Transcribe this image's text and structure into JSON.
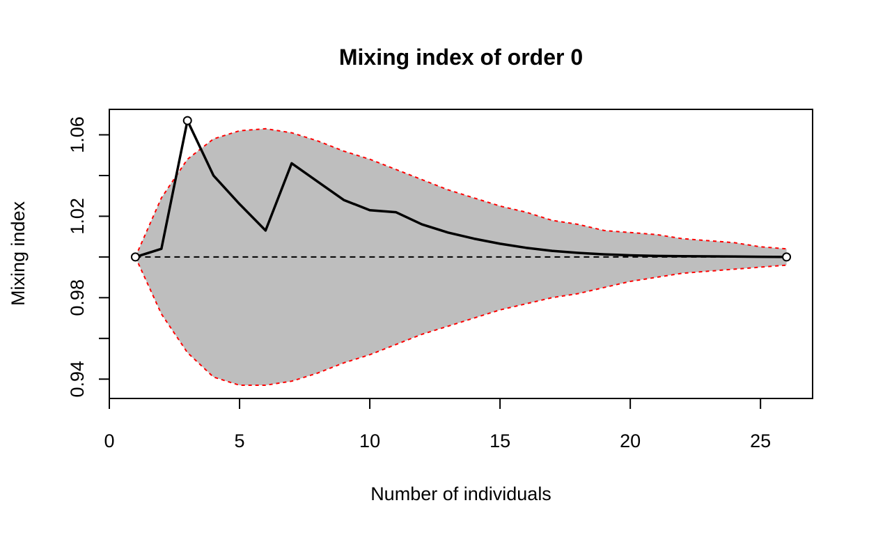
{
  "chart_data": {
    "type": "line",
    "title": "Mixing index of order 0",
    "xlabel": "Number of individuals",
    "ylabel": "Mixing index",
    "xlim": [
      0,
      27
    ],
    "ylim": [
      0.9305,
      1.0725
    ],
    "x_ticks": [
      0,
      5,
      10,
      15,
      20,
      25
    ],
    "x_tick_labels": [
      "0",
      "5",
      "10",
      "15",
      "20",
      "25"
    ],
    "y_ticks": [
      0.94,
      0.96,
      0.98,
      1.0,
      1.02,
      1.04,
      1.06
    ],
    "y_tick_labels": [
      "0.94",
      "",
      "0.98",
      "",
      "1.02",
      "",
      "1.06"
    ],
    "grid": false,
    "legend": "none",
    "colors": {
      "envelope_fill": "#bebebe",
      "envelope_border": "#ff0000",
      "observed_line": "#000000",
      "reference_line": "#000000"
    },
    "reference": {
      "y": 1.0,
      "style": "dashed"
    },
    "series": [
      {
        "role": "observed",
        "style": "solid",
        "x": [
          1,
          2,
          3,
          4,
          5,
          6,
          7,
          8,
          9,
          10,
          11,
          12,
          13,
          14,
          15,
          16,
          17,
          18,
          19,
          20,
          21,
          22,
          23,
          24,
          25,
          26
        ],
        "y": [
          1.0,
          1.004,
          1.067,
          1.04,
          1.026,
          1.013,
          1.046,
          1.037,
          1.028,
          1.023,
          1.022,
          1.016,
          1.012,
          1.009,
          1.0065,
          1.0045,
          1.003,
          1.002,
          1.0013,
          1.0008,
          1.0005,
          1.0004,
          1.0003,
          1.0002,
          1.0001,
          1.0
        ],
        "endpoint_markers": true
      },
      {
        "role": "envelope-upper",
        "style": "dashed",
        "x": [
          1,
          2,
          3,
          4,
          5,
          6,
          7,
          8,
          9,
          10,
          11,
          12,
          13,
          14,
          15,
          16,
          17,
          18,
          19,
          20,
          21,
          22,
          23,
          24,
          25,
          26
        ],
        "y": [
          1.0,
          1.029,
          1.048,
          1.058,
          1.062,
          1.063,
          1.061,
          1.057,
          1.052,
          1.048,
          1.043,
          1.038,
          1.033,
          1.029,
          1.025,
          1.022,
          1.018,
          1.016,
          1.013,
          1.012,
          1.011,
          1.009,
          1.008,
          1.007,
          1.005,
          1.004
        ]
      },
      {
        "role": "envelope-lower",
        "style": "dashed",
        "x": [
          1,
          2,
          3,
          4,
          5,
          6,
          7,
          8,
          9,
          10,
          11,
          12,
          13,
          14,
          15,
          16,
          17,
          18,
          19,
          20,
          21,
          22,
          23,
          24,
          25,
          26
        ],
        "y": [
          1.0,
          0.972,
          0.953,
          0.941,
          0.937,
          0.937,
          0.939,
          0.943,
          0.948,
          0.952,
          0.957,
          0.962,
          0.966,
          0.97,
          0.974,
          0.977,
          0.98,
          0.982,
          0.985,
          0.988,
          0.99,
          0.992,
          0.993,
          0.994,
          0.995,
          0.996
        ]
      }
    ]
  }
}
